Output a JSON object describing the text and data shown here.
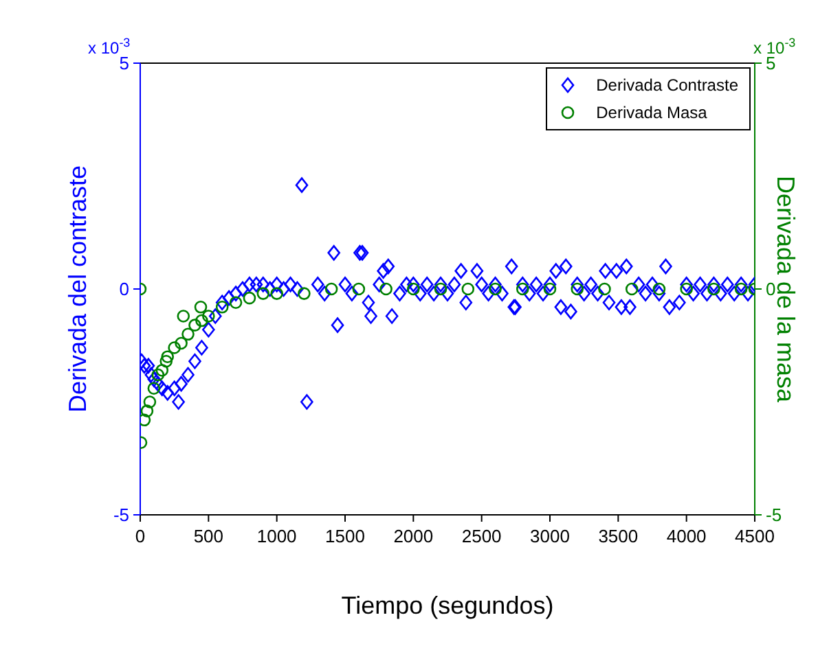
{
  "chart_data": {
    "type": "scatter",
    "xlabel": "Tiempo (segundos)",
    "ylabel": "Derivada del contraste",
    "y2label": "Derivada de la masa",
    "annotations": [
      "x 10$^{-3}$",
      "x 10$^{-3}$"
    ],
    "xlim": [
      0,
      4500
    ],
    "xticks": [
      0,
      500,
      1000,
      1500,
      2000,
      2500,
      3000,
      3500,
      4000,
      4500
    ],
    "ylim": [
      -5,
      5
    ],
    "yticks": [
      -5,
      0,
      5
    ],
    "y2lim": [
      -5,
      5
    ],
    "y2ticks": [
      -5,
      0,
      5
    ],
    "legend": "top right",
    "series": [
      {
        "name": "Derivada Contraste",
        "color": "#0000ff",
        "marker": "diamond",
        "x": [
          10,
          30,
          60,
          80,
          100,
          130,
          160,
          200,
          250,
          280,
          300,
          350,
          400,
          450,
          500,
          550,
          600,
          650,
          700,
          750,
          800,
          850,
          900,
          950,
          1000,
          1050,
          1100,
          1150,
          1183,
          1220,
          1300,
          1350,
          1418,
          1445,
          1500,
          1550,
          1608,
          1626,
          1671,
          1689,
          1750,
          1780,
          1816,
          1843,
          1900,
          1950,
          2000,
          2050,
          2100,
          2150,
          2200,
          2250,
          2300,
          2349,
          2385,
          2466,
          2500,
          2550,
          2600,
          2650,
          2719,
          2737,
          2746,
          2800,
          2850,
          2900,
          2950,
          3000,
          3044,
          3080,
          3117,
          3153,
          3200,
          3250,
          3300,
          3350,
          3406,
          3433,
          3487,
          3523,
          3560,
          3586,
          3650,
          3700,
          3750,
          3800,
          3848,
          3875,
          3948,
          4000,
          4050,
          4100,
          4150,
          4200,
          4250,
          4300,
          4350,
          4400,
          4450,
          4500
        ],
        "values": [
          -1.6,
          -1.7,
          -1.7,
          -1.9,
          -2,
          -2.1,
          -2.2,
          -2.3,
          -2.2,
          -2.5,
          -2.1,
          -1.9,
          -1.6,
          -1.3,
          -0.9,
          -0.6,
          -0.3,
          -0.2,
          -0.1,
          0,
          0.1,
          0.1,
          0.1,
          0,
          0.1,
          0,
          0.1,
          0,
          2.3,
          -2.5,
          0.1,
          -0.1,
          0.8,
          -0.8,
          0.1,
          -0.1,
          0.8,
          0.8,
          -0.3,
          -0.6,
          0.1,
          0.4,
          0.5,
          -0.6,
          -0.1,
          0.1,
          0.1,
          -0.1,
          0.1,
          -0.1,
          0.1,
          -0.1,
          0.1,
          0.4,
          -0.3,
          0.4,
          0.1,
          -0.1,
          0.1,
          -0.1,
          0.5,
          -0.4,
          -0.4,
          0.1,
          -0.1,
          0.1,
          -0.1,
          0.1,
          0.4,
          -0.4,
          0.5,
          -0.5,
          0.1,
          -0.1,
          0.1,
          -0.1,
          0.4,
          -0.3,
          0.4,
          -0.4,
          0.5,
          -0.4,
          0.1,
          -0.1,
          0.1,
          -0.1,
          0.5,
          -0.4,
          -0.3,
          0.1,
          -0.1,
          0.1,
          -0.1,
          0.1,
          -0.1,
          0.1,
          -0.1,
          0.1,
          -0.1,
          0.1
        ]
      },
      {
        "name": "Derivada Masa",
        "color": "#008000",
        "marker": "circle",
        "axis": "y2",
        "x": [
          0,
          5,
          30,
          50,
          70,
          100,
          130,
          160,
          190,
          200,
          250,
          300,
          316,
          350,
          400,
          443,
          450,
          500,
          600,
          700,
          800,
          900,
          1000,
          1200,
          1400,
          1600,
          1800,
          2000,
          2200,
          2400,
          2600,
          2800,
          3000,
          3200,
          3400,
          3600,
          3800,
          4000,
          4200,
          4400,
          4500
        ],
        "values": [
          0,
          -3.4,
          -2.9,
          -2.7,
          -2.5,
          -2.2,
          -1.9,
          -1.8,
          -1.6,
          -1.5,
          -1.3,
          -1.2,
          -0.6,
          -1,
          -0.8,
          -0.4,
          -0.7,
          -0.6,
          -0.4,
          -0.3,
          -0.2,
          -0.1,
          -0.1,
          -0.1,
          0,
          0,
          0,
          0,
          0,
          0,
          0,
          0,
          0,
          0,
          0,
          0,
          0,
          0,
          0,
          0,
          0
        ]
      }
    ]
  }
}
